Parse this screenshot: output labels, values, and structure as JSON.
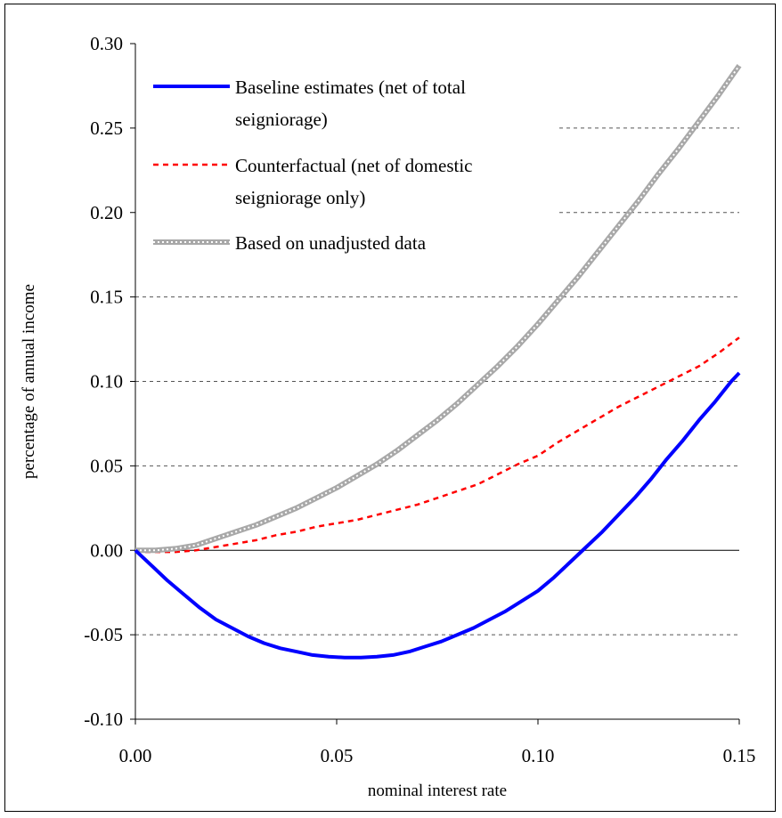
{
  "chart_data": {
    "type": "line",
    "title": "",
    "xlabel": "nominal interest rate",
    "ylabel": "percentage of annual income",
    "xlim": [
      0,
      0.15
    ],
    "ylim": [
      -0.1,
      0.3
    ],
    "xticks": [
      "0.00",
      "0.05",
      "0.10",
      "0.15"
    ],
    "yticks": [
      "-0.10",
      "-0.05",
      "0.00",
      "0.05",
      "0.10",
      "0.15",
      "0.20",
      "0.25",
      "0.30"
    ],
    "grid": "horizontal dashed",
    "legend_position": "top-left",
    "series": [
      {
        "name": "Baseline estimates (net of total seigniorage)",
        "color": "#0000ff",
        "style": "solid-thick",
        "x": [
          0,
          0.004,
          0.008,
          0.012,
          0.016,
          0.02,
          0.024,
          0.028,
          0.032,
          0.036,
          0.04,
          0.044,
          0.048,
          0.052,
          0.056,
          0.06,
          0.064,
          0.068,
          0.072,
          0.076,
          0.08,
          0.084,
          0.088,
          0.092,
          0.096,
          0.1,
          0.104,
          0.108,
          0.112,
          0.116,
          0.12,
          0.124,
          0.128,
          0.132,
          0.136,
          0.14,
          0.144,
          0.148,
          0.15
        ],
        "y": [
          0,
          -0.009,
          -0.018,
          -0.026,
          -0.034,
          -0.041,
          -0.046,
          -0.051,
          -0.055,
          -0.058,
          -0.06,
          -0.062,
          -0.063,
          -0.0635,
          -0.0635,
          -0.063,
          -0.062,
          -0.06,
          -0.057,
          -0.054,
          -0.05,
          -0.046,
          -0.041,
          -0.036,
          -0.03,
          -0.024,
          -0.016,
          -0.007,
          0.002,
          0.011,
          0.021,
          0.031,
          0.042,
          0.054,
          0.065,
          0.077,
          0.088,
          0.1,
          0.105
        ]
      },
      {
        "name": "Counterfactual (net of domestic seigniorage only)",
        "color": "#ff0000",
        "style": "dashed",
        "x": [
          0,
          0.01,
          0.015,
          0.02,
          0.025,
          0.03,
          0.035,
          0.04,
          0.045,
          0.05,
          0.055,
          0.06,
          0.065,
          0.07,
          0.075,
          0.08,
          0.085,
          0.09,
          0.095,
          0.1,
          0.105,
          0.11,
          0.115,
          0.12,
          0.125,
          0.13,
          0.135,
          0.14,
          0.145,
          0.15
        ],
        "y": [
          -0.001,
          -0.001,
          0,
          0.002,
          0.004,
          0.006,
          0.009,
          0.011,
          0.014,
          0.016,
          0.018,
          0.021,
          0.024,
          0.027,
          0.031,
          0.035,
          0.039,
          0.045,
          0.051,
          0.056,
          0.064,
          0.071,
          0.078,
          0.085,
          0.091,
          0.097,
          0.103,
          0.109,
          0.117,
          0.126
        ]
      },
      {
        "name": "Based on unadjusted data",
        "color": "#a8a8a8",
        "style": "hatched-thick",
        "x": [
          0,
          0.005,
          0.01,
          0.015,
          0.02,
          0.025,
          0.03,
          0.035,
          0.04,
          0.045,
          0.05,
          0.055,
          0.06,
          0.065,
          0.07,
          0.075,
          0.08,
          0.085,
          0.09,
          0.095,
          0.1,
          0.105,
          0.11,
          0.115,
          0.12,
          0.125,
          0.13,
          0.135,
          0.14,
          0.145,
          0.15
        ],
        "y": [
          0,
          0,
          0.001,
          0.003,
          0.007,
          0.011,
          0.015,
          0.02,
          0.025,
          0.031,
          0.037,
          0.044,
          0.051,
          0.059,
          0.068,
          0.077,
          0.087,
          0.098,
          0.109,
          0.121,
          0.134,
          0.148,
          0.162,
          0.177,
          0.192,
          0.207,
          0.223,
          0.238,
          0.254,
          0.27,
          0.287
        ]
      }
    ]
  }
}
